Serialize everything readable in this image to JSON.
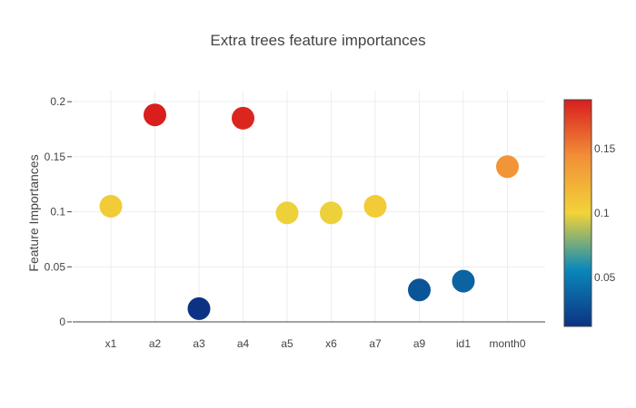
{
  "chart_data": {
    "type": "scatter",
    "title": "Extra trees feature importances",
    "xlabel": "",
    "ylabel": "Feature Importances",
    "categories": [
      "x1",
      "a2",
      "a3",
      "a4",
      "a5",
      "x6",
      "a7",
      "a9",
      "id1",
      "month0"
    ],
    "values": [
      0.105,
      0.188,
      0.012,
      0.185,
      0.099,
      0.099,
      0.105,
      0.029,
      0.037,
      0.141
    ],
    "ylim": [
      0,
      0.21
    ],
    "yticks": [
      0,
      0.05,
      0.1,
      0.15,
      0.2
    ],
    "ytick_labels": [
      "0",
      "0.05",
      "0.1",
      "0.15",
      "0.2"
    ],
    "grid": true,
    "colorbar": {
      "range": [
        0.012,
        0.188
      ],
      "ticks": [
        0.05,
        0.1,
        0.15
      ],
      "tick_labels": [
        "0.05",
        "0.1",
        "0.15"
      ],
      "colorscale": [
        "#0c3383",
        "#0a88ba",
        "#f2d338",
        "#f28f38",
        "#d91e1e"
      ]
    }
  }
}
